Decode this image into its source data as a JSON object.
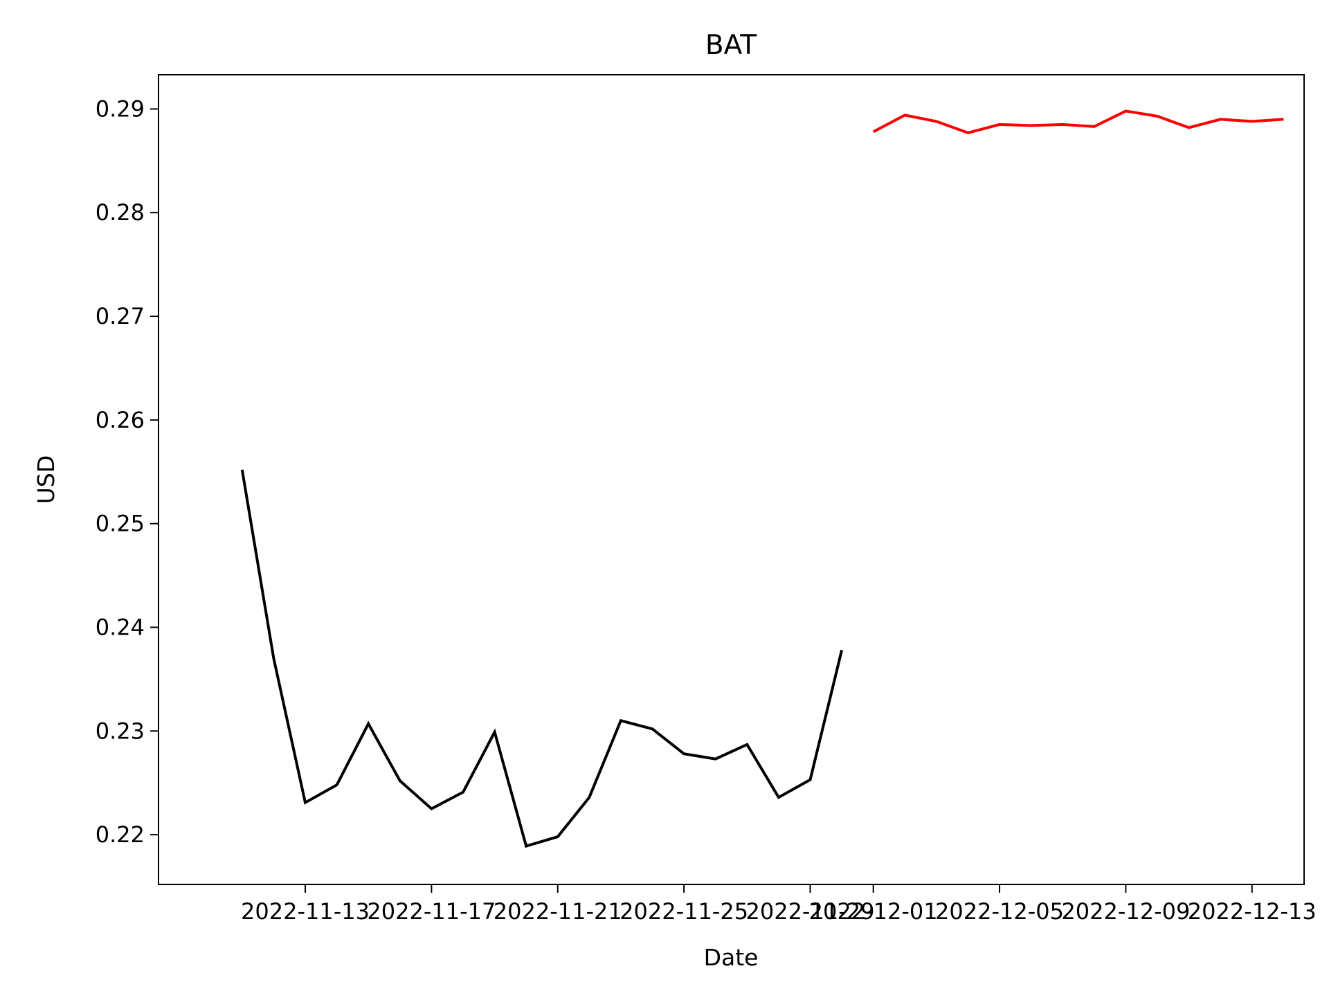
{
  "chart_data": {
    "type": "line",
    "title": "BAT",
    "xlabel": "Date",
    "ylabel": "USD",
    "x_ticks": [
      "2022-11-13",
      "2022-11-17",
      "2022-11-21",
      "2022-11-25",
      "2022-11-29",
      "2022-12-01",
      "2022-12-05",
      "2022-12-09",
      "2022-12-13"
    ],
    "y_ticks": [
      "0.22",
      "0.23",
      "0.24",
      "0.25",
      "0.26",
      "0.27",
      "0.28",
      "0.29"
    ],
    "xlim": [
      "2022-11-09",
      "2022-12-14"
    ],
    "ylim": [
      0.2152,
      0.2933
    ],
    "grid": false,
    "series": [
      {
        "color": "#000000",
        "x": [
          "2022-11-11",
          "2022-11-12",
          "2022-11-13",
          "2022-11-14",
          "2022-11-15",
          "2022-11-16",
          "2022-11-17",
          "2022-11-18",
          "2022-11-19",
          "2022-11-20",
          "2022-11-21",
          "2022-11-22",
          "2022-11-23",
          "2022-11-24",
          "2022-11-25",
          "2022-11-26",
          "2022-11-27",
          "2022-11-28",
          "2022-11-29",
          "2022-11-30"
        ],
        "y": [
          0.2552,
          0.237,
          0.2231,
          0.2248,
          0.2307,
          0.2252,
          0.2225,
          0.2241,
          0.2299,
          0.2189,
          0.2198,
          0.2236,
          0.231,
          0.2302,
          0.2278,
          0.2273,
          0.2287,
          0.2236,
          0.2253,
          0.2378
        ]
      },
      {
        "color": "#ff0000",
        "x": [
          "2022-12-01",
          "2022-12-02",
          "2022-12-03",
          "2022-12-04",
          "2022-12-05",
          "2022-12-06",
          "2022-12-07",
          "2022-12-08",
          "2022-12-09",
          "2022-12-10",
          "2022-12-11",
          "2022-12-12",
          "2022-12-13",
          "2022-12-14"
        ],
        "y": [
          0.2878,
          0.2894,
          0.2888,
          0.2877,
          0.2885,
          0.2884,
          0.2885,
          0.2883,
          0.2898,
          0.2893,
          0.2882,
          0.289,
          0.2888,
          0.289
        ]
      }
    ]
  }
}
